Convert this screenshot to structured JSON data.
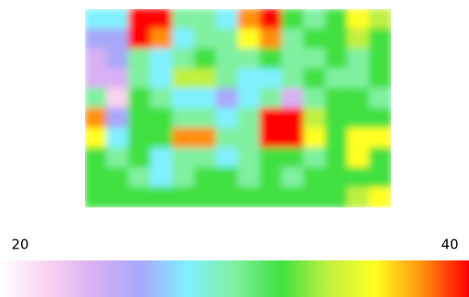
{
  "chart_data": {
    "type": "heatmap",
    "values": [
      [
        28,
        28,
        40,
        40,
        30,
        30,
        28,
        38,
        40,
        32,
        30,
        32,
        36,
        34
      ],
      [
        26,
        26,
        40,
        38,
        28,
        30,
        30,
        36,
        38,
        30,
        32,
        32,
        34,
        32
      ],
      [
        24,
        26,
        30,
        28,
        30,
        32,
        30,
        30,
        32,
        30,
        30,
        32,
        30,
        32
      ],
      [
        24,
        24,
        30,
        28,
        34,
        34,
        30,
        28,
        28,
        30,
        32,
        30,
        30,
        32
      ],
      [
        30,
        22,
        32,
        30,
        28,
        28,
        26,
        28,
        30,
        24,
        30,
        32,
        32,
        30
      ],
      [
        38,
        26,
        32,
        32,
        30,
        30,
        28,
        30,
        40,
        40,
        34,
        32,
        32,
        32
      ],
      [
        36,
        28,
        32,
        32,
        38,
        38,
        30,
        30,
        40,
        40,
        36,
        32,
        36,
        36
      ],
      [
        32,
        30,
        32,
        28,
        30,
        30,
        28,
        30,
        32,
        32,
        30,
        32,
        36,
        32
      ],
      [
        32,
        32,
        30,
        28,
        30,
        32,
        32,
        30,
        32,
        30,
        32,
        32,
        32,
        32
      ],
      [
        32,
        32,
        32,
        32,
        32,
        32,
        32,
        32,
        32,
        32,
        32,
        32,
        34,
        36
      ]
    ],
    "colormap": [
      "#ffffff",
      "#f9d3f0",
      "#d9b0f3",
      "#a8a8f8",
      "#80f0ff",
      "#80f0a0",
      "#40e040",
      "#c0f040",
      "#ffff20",
      "#ff9010",
      "#ff0000"
    ],
    "clim": [
      20,
      40
    ],
    "cticks": [
      20,
      40
    ]
  }
}
